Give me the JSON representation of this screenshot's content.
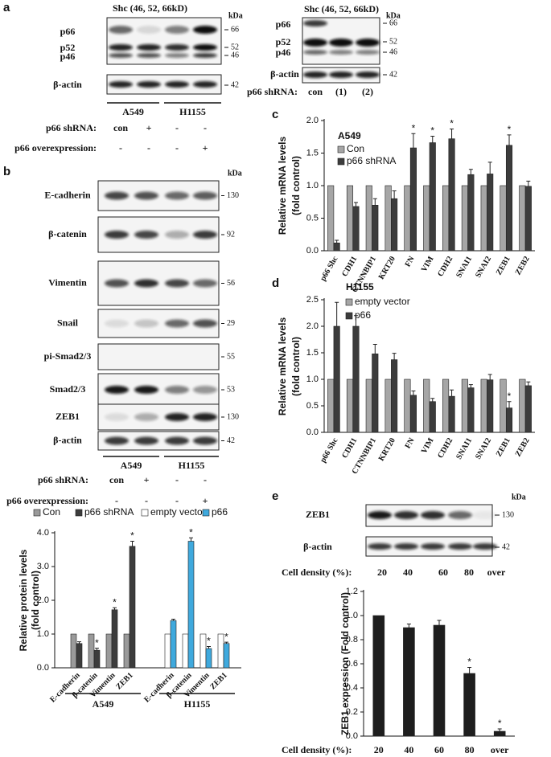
{
  "panel_a": {
    "label": "a",
    "left": {
      "title": "Shc (46, 52, 66kD)",
      "unit": "kDa",
      "bands": [
        "p66",
        "p52",
        "p46"
      ],
      "loading": "β-actin",
      "markers": [
        "66",
        "52",
        "46",
        "42"
      ],
      "groups": [
        "A549",
        "H1155"
      ],
      "rows": [
        {
          "name": "p66 shRNA:",
          "lanes": [
            "con",
            "+",
            "-",
            "-"
          ]
        },
        {
          "name": "p66 overexpression:",
          "lanes": [
            "-",
            "-",
            "-",
            "+"
          ]
        }
      ]
    },
    "right": {
      "title": "Shc (46, 52, 66kD)",
      "unit": "kDa",
      "bands": [
        "p66",
        "p52",
        "p46"
      ],
      "loading": "β-actin",
      "markers": [
        "66",
        "52",
        "46",
        "42"
      ],
      "rows": [
        {
          "name": "p66 shRNA:",
          "lanes": [
            "con",
            "(1)",
            "(2)"
          ]
        }
      ]
    }
  },
  "panel_b": {
    "label": "b",
    "unit": "kDa",
    "blots": [
      {
        "name": "E-cadherin",
        "marker": "130"
      },
      {
        "name": "β-catenin",
        "marker": "92"
      },
      {
        "name": "Vimentin",
        "marker": "56"
      },
      {
        "name": "Snail",
        "marker": "29"
      },
      {
        "name": "pi-Smad2/3",
        "marker": "55"
      },
      {
        "name": "Smad2/3",
        "marker": "53"
      },
      {
        "name": "ZEB1",
        "marker": "130"
      },
      {
        "name": "β-actin",
        "marker": "42"
      }
    ],
    "groups": [
      "A549",
      "H1155"
    ],
    "rows": [
      {
        "name": "p66 shRNA:",
        "lanes": [
          "con",
          "+",
          "-",
          "-"
        ]
      },
      {
        "name": "p66 overexpression:",
        "lanes": [
          "-",
          "-",
          "-",
          "+"
        ]
      }
    ]
  },
  "panel_c": {
    "label": "c"
  },
  "panel_d": {
    "label": "d"
  },
  "panel_e": {
    "label": "e",
    "unit": "kDa",
    "blots": [
      {
        "name": "ZEB1",
        "marker": "130"
      },
      {
        "name": "β-actin",
        "marker": "42"
      }
    ],
    "row": {
      "name": "Cell density (%):",
      "lanes": [
        "20",
        "40",
        "60",
        "80",
        "over"
      ]
    }
  },
  "chart_data": [
    {
      "type": "bar",
      "ylabel": [
        "Relative protein levels",
        "(fold control)"
      ],
      "groups": [
        {
          "name": "A549",
          "categories": [
            "E-cadherin",
            "β-catenin",
            "Vimentin",
            "ZEB1"
          ]
        },
        {
          "name": "H1155",
          "categories": [
            "E-cadherin",
            "β-catenin",
            "Vimentin",
            "ZEB1"
          ]
        }
      ],
      "series": [
        {
          "name": "Con",
          "color": "#9a9a9a",
          "values": [
            1,
            1,
            1,
            1,
            null,
            null,
            null,
            null
          ]
        },
        {
          "name": "p66 shRNA",
          "color": "#3c3c3c",
          "values": [
            0.72,
            0.52,
            1.72,
            3.6,
            null,
            null,
            null,
            null
          ],
          "errors": [
            0.05,
            0.06,
            0.06,
            0.15,
            null,
            null,
            null,
            null
          ],
          "significance": [
            null,
            "*",
            "*",
            "*",
            null,
            null,
            null,
            null
          ]
        },
        {
          "name": "empty vector",
          "color": "#ffffff",
          "values": [
            null,
            null,
            null,
            null,
            1,
            1,
            1,
            1
          ]
        },
        {
          "name": "p66",
          "color": "#3fa9dd",
          "values": [
            null,
            null,
            null,
            null,
            1.4,
            3.75,
            0.57,
            0.72
          ],
          "errors": [
            null,
            null,
            null,
            null,
            0.04,
            0.1,
            0.06,
            0.04
          ],
          "significance": [
            null,
            null,
            null,
            null,
            null,
            "*",
            "*",
            "*"
          ]
        }
      ],
      "ylim": [
        0,
        4
      ],
      "yticks": [
        {
          "value": 0,
          "label": "0.0"
        },
        {
          "value": 1,
          "label": "1.0"
        },
        {
          "value": 2,
          "label": "2.0"
        },
        {
          "value": 3,
          "label": "3.0"
        },
        {
          "value": 4,
          "label": "4.0"
        }
      ]
    },
    {
      "type": "bar",
      "title": "A549",
      "ylabel": [
        "Relative mRNA levels",
        "(fold control)"
      ],
      "categories": [
        "p66 Shc",
        "CDH1",
        "CTNNBIP1",
        "KRT20",
        "FN",
        "VIM",
        "CDH2",
        "SNAI1",
        "SNAI2",
        "ZEB1",
        "ZEB2"
      ],
      "series": [
        {
          "name": "Con",
          "color": "#a6a6a6",
          "values": [
            1,
            1,
            1,
            1,
            1,
            1,
            1,
            1,
            1,
            1,
            1
          ]
        },
        {
          "name": "p66 shRNA",
          "color": "#3c3c3c",
          "values": [
            0.12,
            0.68,
            0.7,
            0.8,
            1.58,
            1.66,
            1.72,
            1.17,
            1.18,
            1.62,
            0.99
          ],
          "errors": [
            0.04,
            0.06,
            0.1,
            0.12,
            0.22,
            0.1,
            0.15,
            0.08,
            0.18,
            0.16,
            0.08
          ],
          "significance": [
            null,
            null,
            null,
            null,
            "*",
            "*",
            "*",
            null,
            null,
            "*",
            null
          ]
        }
      ],
      "ylim": [
        0,
        2
      ],
      "yticks": [
        {
          "value": 0,
          "label": "0.0"
        },
        {
          "value": 0.5,
          "label": "0.5"
        },
        {
          "value": 1,
          "label": "1.0"
        },
        {
          "value": 1.5,
          "label": "1.5"
        },
        {
          "value": 2,
          "label": "2.0"
        }
      ]
    },
    {
      "type": "bar",
      "title": "H1155",
      "ylabel": [
        "Relative mRNA levels",
        "(fold control)"
      ],
      "categories": [
        "p66 Shc",
        "CDH1",
        "CTNNBIP1",
        "KRT20",
        "FN",
        "VIM",
        "CDH2",
        "SNAI1",
        "SNAI2",
        "ZEB1",
        "ZEB2"
      ],
      "series": [
        {
          "name": "empty vector",
          "color": "#a6a6a6",
          "values": [
            1,
            1,
            1,
            1,
            1,
            1,
            1,
            1,
            1,
            1,
            1
          ]
        },
        {
          "name": "p66",
          "color": "#3c3c3c",
          "values": [
            2.0,
            2.0,
            1.48,
            1.37,
            0.7,
            0.58,
            0.68,
            0.84,
            0.99,
            0.46,
            0.88
          ],
          "errors": [
            0.45,
            0.2,
            0.18,
            0.12,
            0.08,
            0.06,
            0.12,
            0.06,
            0.1,
            0.12,
            0.07
          ],
          "significance": [
            null,
            null,
            null,
            null,
            null,
            null,
            null,
            null,
            null,
            "*",
            null
          ]
        }
      ],
      "ylim": [
        0,
        2.5
      ],
      "yticks": [
        {
          "value": 0,
          "label": "0.0"
        },
        {
          "value": 0.5,
          "label": "0.5"
        },
        {
          "value": 1,
          "label": "1.0"
        },
        {
          "value": 1.5,
          "label": "1.5"
        },
        {
          "value": 2,
          "label": "2.0"
        },
        {
          "value": 2.5,
          "label": "2.5"
        }
      ]
    },
    {
      "type": "bar",
      "xlabel": "Cell density (%):",
      "ylabel": [
        "ZEB1 expression (Fold control)"
      ],
      "categories": [
        "20",
        "40",
        "60",
        "80",
        "over"
      ],
      "series": [
        {
          "color": "#1e1e1e",
          "values": [
            1.0,
            0.9,
            0.92,
            0.52,
            0.04
          ],
          "errors": [
            0,
            0.03,
            0.04,
            0.05,
            0.02
          ],
          "significance": [
            null,
            null,
            null,
            "*",
            "*"
          ]
        }
      ],
      "ylim": [
        0,
        1.2
      ],
      "yticks": [
        {
          "value": 0,
          "label": "0.0"
        },
        {
          "value": 0.2,
          "label": "0.2"
        },
        {
          "value": 0.4,
          "label": "0.4"
        },
        {
          "value": 0.6,
          "label": "0.6"
        },
        {
          "value": 0.8,
          "label": "0.8"
        },
        {
          "value": 1,
          "label": "1.0"
        },
        {
          "value": 1.2,
          "label": "1.2"
        }
      ]
    }
  ]
}
